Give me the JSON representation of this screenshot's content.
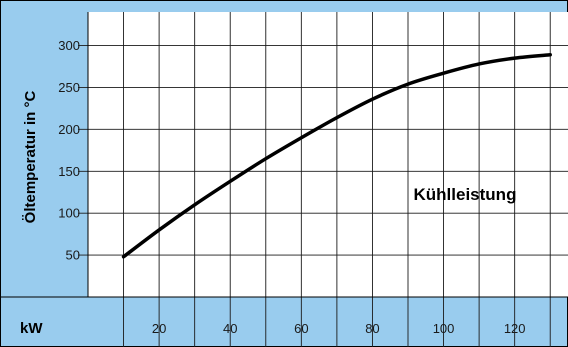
{
  "chart_data": {
    "type": "line",
    "ylabel": "Öltemperatur in °C",
    "xlabel": "kW",
    "annotation": "Kühlleistung",
    "xlim": [
      0,
      135
    ],
    "ylim": [
      0,
      340
    ],
    "xticks": [
      20,
      40,
      60,
      80,
      100,
      120
    ],
    "yticks": [
      50,
      100,
      150,
      200,
      250,
      300
    ],
    "grid": true,
    "series": [
      {
        "x": [
          10,
          20,
          30,
          40,
          50,
          60,
          70,
          80,
          90,
          100,
          110,
          120,
          130
        ],
        "y": [
          48,
          80,
          110,
          138,
          165,
          190,
          214,
          236,
          254,
          267,
          278,
          285,
          289
        ]
      }
    ]
  },
  "colors": {
    "panel": "#99ccee",
    "plot_bg": "#ffffff",
    "grid": "#1a1a1a",
    "line": "#000000"
  }
}
